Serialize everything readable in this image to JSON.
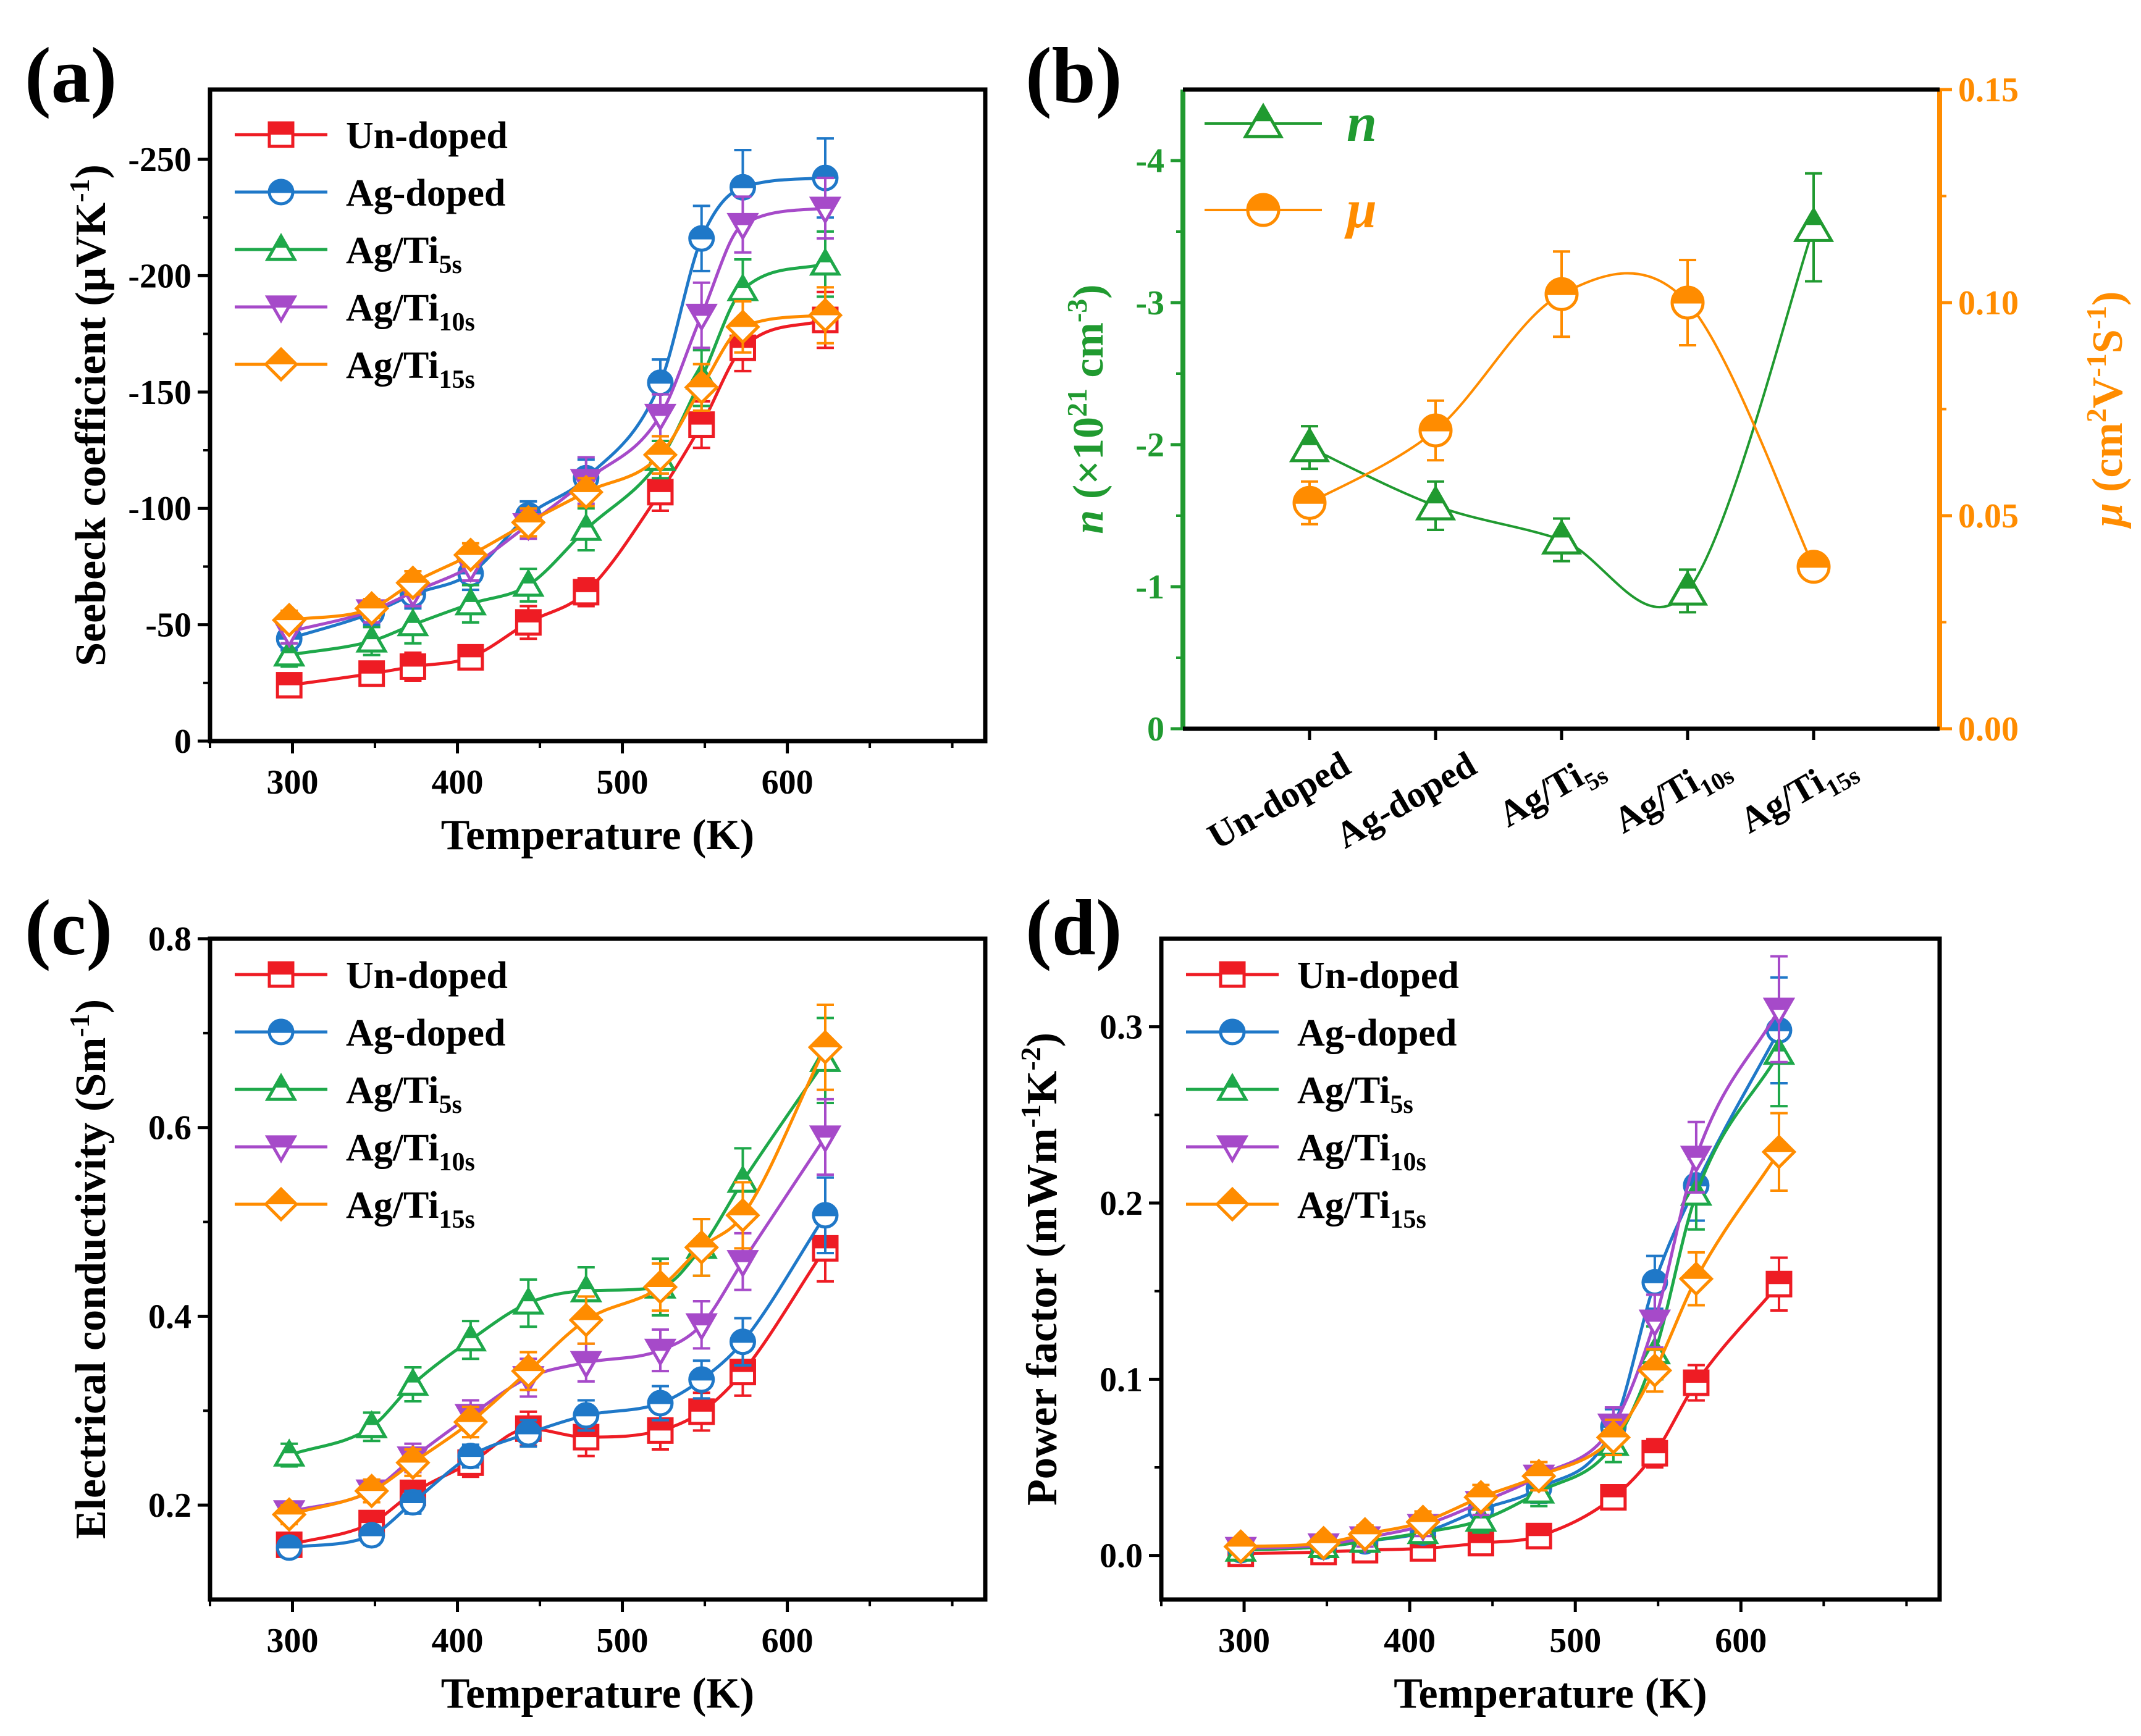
{
  "colors": {
    "undoped": "#ee1c24",
    "ag": "#1f78c8",
    "ti5": "#1ea84a",
    "ti10": "#a64ac9",
    "ti15": "#ff8c00",
    "n_green": "#209a30",
    "mu_orange": "#ff8c00"
  },
  "chart_data": [
    {
      "panel": "(a)",
      "type": "line",
      "xlabel": "Temperature (K)",
      "ylabel": "Seebeck coefficient (μVK⁻¹)",
      "ylabel_parts": {
        "main": "Seebeck coefficient (μVK",
        "sup": "-1",
        "end": ")"
      },
      "xlim": [
        250,
        720
      ],
      "ylim": [
        0,
        -280
      ],
      "xticks": [
        300,
        400,
        500,
        600
      ],
      "xtick_labels": [
        "300",
        "400",
        "500",
        "600"
      ],
      "yticks": [
        0,
        -50,
        -100,
        -150,
        -200,
        -250
      ],
      "ytick_labels": [
        "0",
        "-50",
        "-100",
        "-150",
        "-200",
        "-250"
      ],
      "legend": "top-left",
      "x": [
        298,
        348,
        373,
        408,
        443,
        478,
        523,
        548,
        573,
        623
      ],
      "series": [
        {
          "name": "Un-doped",
          "sub": "",
          "marker": "square",
          "color_key": "undoped",
          "values": [
            -24,
            -29,
            -32,
            -36,
            -51,
            -64,
            -107,
            -136,
            -169,
            -181
          ],
          "err": [
            5,
            5,
            6,
            5,
            7,
            6,
            8,
            10,
            10,
            12
          ]
        },
        {
          "name": "Ag-doped",
          "sub": "",
          "marker": "circle",
          "color_key": "ag",
          "values": [
            -44,
            -55,
            -63,
            -72,
            -97,
            -113,
            -154,
            -216,
            -238,
            -242
          ],
          "err": [
            5,
            5,
            6,
            7,
            6,
            8,
            10,
            14,
            16,
            17
          ]
        },
        {
          "name": "Ag/Ti",
          "sub": "5s",
          "marker": "triangle",
          "color_key": "ti5",
          "values": [
            -37,
            -43,
            -50,
            -59,
            -67,
            -91,
            -121,
            -156,
            -194,
            -205
          ],
          "err": [
            5,
            6,
            8,
            8,
            7,
            9,
            8,
            12,
            13,
            14
          ]
        },
        {
          "name": "Ag/Ti",
          "sub": "10s",
          "marker": "invtriangle",
          "color_key": "ti10",
          "values": [
            -47,
            -56,
            -64,
            -75,
            -93,
            -112,
            -140,
            -183,
            -222,
            -229
          ],
          "err": [
            5,
            5,
            6,
            6,
            6,
            10,
            9,
            14,
            12,
            13
          ]
        },
        {
          "name": "Ag/Ti",
          "sub": "15s",
          "marker": "diamond",
          "color_key": "ti15",
          "values": [
            -52,
            -57,
            -68,
            -80,
            -94,
            -107,
            -123,
            -152,
            -178,
            -183
          ],
          "err": [
            4,
            4,
            5,
            5,
            6,
            6,
            8,
            10,
            11,
            12
          ]
        }
      ]
    },
    {
      "panel": "(b)",
      "type": "line",
      "ylabel_left": "n (×10²¹ cm⁻³)",
      "ylabel_left_parts": {
        "var": "n",
        "open": "(×10",
        "sup1": "21",
        "mid": " cm",
        "sup2": "-3",
        "end": ")"
      },
      "ylabel_right": "μ (cm²V⁻¹S⁻¹)",
      "ylabel_right_parts": {
        "var": "μ",
        "open": "(cm",
        "sup1": "2",
        "mid": "V",
        "sup2": "-1",
        "mid2": "S",
        "sup3": "-1",
        "end": ")"
      },
      "categories": [
        {
          "main": "Un-doped",
          "sub": ""
        },
        {
          "main": "Ag-doped",
          "sub": ""
        },
        {
          "main": "Ag/Ti",
          "sub": "5s"
        },
        {
          "main": "Ag/Ti",
          "sub": "10s"
        },
        {
          "main": "Ag/Ti",
          "sub": "15s"
        }
      ],
      "ylim_left": [
        0,
        -4.5
      ],
      "yticks_left": [
        0,
        -1,
        -2,
        -3,
        -4
      ],
      "ytick_labels_left": [
        "0",
        "-1",
        "-2",
        "-3",
        "-4"
      ],
      "ylim_right": [
        0,
        0.15
      ],
      "yticks_right": [
        0,
        0.05,
        0.1,
        0.15
      ],
      "ytick_labels_right": [
        "0.00",
        "0.05",
        "0.10",
        "0.15"
      ],
      "legend": "top-left",
      "series": [
        {
          "name": "n",
          "axis": "left",
          "marker": "triangle",
          "color_key": "n_green",
          "values": [
            -1.98,
            -1.57,
            -1.33,
            -0.97,
            -3.53
          ],
          "err": [
            0.15,
            0.17,
            0.15,
            0.15,
            0.38
          ]
        },
        {
          "name": "μ",
          "axis": "right",
          "marker": "circle",
          "color_key": "mu_orange",
          "values": [
            0.053,
            0.07,
            0.102,
            0.1,
            0.038
          ],
          "err": [
            0.005,
            0.007,
            0.01,
            0.01,
            0.003
          ]
        }
      ]
    },
    {
      "panel": "(c)",
      "type": "line",
      "xlabel": "Temperature (K)",
      "ylabel": "Electrical conductivity (Sm⁻¹)",
      "ylabel_parts": {
        "main": "Electrical conductivity (Sm",
        "sup": "-1",
        "end": ")"
      },
      "xlim": [
        250,
        720
      ],
      "ylim": [
        0.1,
        0.8
      ],
      "xticks": [
        300,
        400,
        500,
        600
      ],
      "xtick_labels": [
        "300",
        "400",
        "500",
        "600"
      ],
      "yticks": [
        0.2,
        0.4,
        0.6,
        0.8
      ],
      "ytick_labels": [
        "0.2",
        "0.4",
        "0.6",
        "0.8"
      ],
      "legend": "top-left",
      "x": [
        298,
        348,
        373,
        408,
        443,
        478,
        523,
        548,
        573,
        623
      ],
      "series": [
        {
          "name": "Un-doped",
          "sub": "",
          "marker": "square",
          "color_key": "undoped",
          "values": [
            0.158,
            0.181,
            0.213,
            0.245,
            0.281,
            0.272,
            0.279,
            0.299,
            0.341,
            0.472
          ],
          "err": [
            0.01,
            0.012,
            0.012,
            0.015,
            0.018,
            0.02,
            0.02,
            0.02,
            0.025,
            0.035
          ]
        },
        {
          "name": "Ag-doped",
          "sub": "",
          "marker": "circle",
          "color_key": "ag",
          "values": [
            0.155,
            0.168,
            0.203,
            0.252,
            0.276,
            0.295,
            0.308,
            0.333,
            0.373,
            0.507
          ],
          "err": [
            0.01,
            0.01,
            0.012,
            0.012,
            0.014,
            0.016,
            0.018,
            0.02,
            0.025,
            0.04
          ]
        },
        {
          "name": "Ag/Ti",
          "sub": "5s",
          "marker": "triangle",
          "color_key": "ti5",
          "values": [
            0.253,
            0.283,
            0.328,
            0.375,
            0.414,
            0.427,
            0.431,
            0.473,
            0.543,
            0.671
          ],
          "err": [
            0.012,
            0.015,
            0.018,
            0.02,
            0.025,
            0.025,
            0.03,
            0.03,
            0.035,
            0.045
          ]
        },
        {
          "name": "Ag/Ti",
          "sub": "10s",
          "marker": "invtriangle",
          "color_key": "ti10",
          "values": [
            0.193,
            0.215,
            0.25,
            0.295,
            0.335,
            0.351,
            0.364,
            0.391,
            0.458,
            0.59
          ],
          "err": [
            0.01,
            0.012,
            0.015,
            0.016,
            0.02,
            0.02,
            0.022,
            0.025,
            0.03,
            0.04
          ]
        },
        {
          "name": "Ag/Ti",
          "sub": "15s",
          "marker": "diamond",
          "color_key": "ti15",
          "values": [
            0.19,
            0.215,
            0.245,
            0.288,
            0.342,
            0.396,
            0.431,
            0.473,
            0.507,
            0.685
          ],
          "err": [
            0.01,
            0.012,
            0.014,
            0.016,
            0.02,
            0.025,
            0.025,
            0.03,
            0.035,
            0.045
          ]
        }
      ]
    },
    {
      "panel": "(d)",
      "type": "line",
      "xlabel": "Temperature (K)",
      "ylabel": "Power factor (mWm⁻¹K⁻²)",
      "ylabel_parts": {
        "main": "Power factor (mWm",
        "sup": "-1",
        "mid": "K",
        "sup2": "-2",
        "end": ")"
      },
      "xlim": [
        250,
        720
      ],
      "ylim": [
        -0.025,
        0.35
      ],
      "xticks": [
        300,
        400,
        500,
        600
      ],
      "xtick_labels": [
        "300",
        "400",
        "500",
        "600"
      ],
      "yticks": [
        0,
        0.1,
        0.2,
        0.3
      ],
      "ytick_labels": [
        "0.0",
        "0.1",
        "0.2",
        "0.3"
      ],
      "legend": "top-left",
      "x": [
        298,
        348,
        373,
        408,
        443,
        478,
        523,
        548,
        573,
        623
      ],
      "series": [
        {
          "name": "Un-doped",
          "sub": "",
          "marker": "square",
          "color_key": "undoped",
          "values": [
            0.001,
            0.002,
            0.003,
            0.004,
            0.007,
            0.011,
            0.033,
            0.058,
            0.098,
            0.154
          ],
          "err": [
            0.002,
            0.002,
            0.003,
            0.003,
            0.004,
            0.005,
            0.006,
            0.008,
            0.01,
            0.015
          ]
        },
        {
          "name": "Ag-doped",
          "sub": "",
          "marker": "circle",
          "color_key": "ag",
          "values": [
            0.003,
            0.005,
            0.008,
            0.013,
            0.026,
            0.038,
            0.073,
            0.155,
            0.21,
            0.298
          ],
          "err": [
            0.003,
            0.004,
            0.005,
            0.006,
            0.007,
            0.008,
            0.01,
            0.015,
            0.02,
            0.03
          ]
        },
        {
          "name": "Ag/Ti",
          "sub": "5s",
          "marker": "triangle",
          "color_key": "ti5",
          "values": [
            0.003,
            0.005,
            0.008,
            0.013,
            0.02,
            0.036,
            0.063,
            0.115,
            0.205,
            0.285
          ],
          "err": [
            0.003,
            0.004,
            0.005,
            0.006,
            0.007,
            0.008,
            0.01,
            0.015,
            0.02,
            0.03
          ]
        },
        {
          "name": "Ag/Ti",
          "sub": "10s",
          "marker": "invtriangle",
          "color_key": "ti10",
          "values": [
            0.004,
            0.006,
            0.01,
            0.017,
            0.03,
            0.045,
            0.074,
            0.133,
            0.226,
            0.31
          ],
          "err": [
            0.003,
            0.004,
            0.005,
            0.006,
            0.007,
            0.008,
            0.01,
            0.015,
            0.02,
            0.03
          ]
        },
        {
          "name": "Ag/Ti",
          "sub": "15s",
          "marker": "diamond",
          "color_key": "ti15",
          "values": [
            0.005,
            0.007,
            0.012,
            0.019,
            0.033,
            0.045,
            0.067,
            0.105,
            0.157,
            0.229
          ],
          "err": [
            0.003,
            0.004,
            0.005,
            0.006,
            0.007,
            0.008,
            0.01,
            0.012,
            0.015,
            0.022
          ]
        }
      ]
    }
  ]
}
